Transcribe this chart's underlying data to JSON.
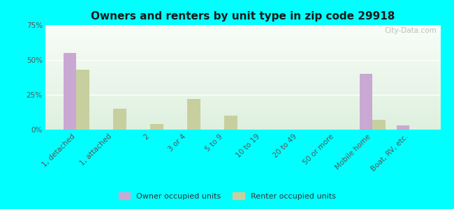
{
  "title": "Owners and renters by unit type in zip code 29918",
  "categories": [
    "1, detached",
    "1, attached",
    "2",
    "3 or 4",
    "5 to 9",
    "10 to 19",
    "20 to 49",
    "50 or more",
    "Mobile home",
    "Boat, RV, etc."
  ],
  "owner_values": [
    55,
    0,
    0,
    0,
    0,
    0,
    0,
    0,
    40,
    3
  ],
  "renter_values": [
    43,
    15,
    4,
    22,
    10,
    0,
    0,
    0,
    7,
    0
  ],
  "owner_color": "#c9a8d4",
  "renter_color": "#c8cf9e",
  "background_color": "#00ffff",
  "ylim": [
    0,
    75
  ],
  "bar_width": 0.35,
  "watermark": "City-Data.com",
  "title_fontsize": 11,
  "tick_fontsize": 7.5,
  "legend_fontsize": 8
}
